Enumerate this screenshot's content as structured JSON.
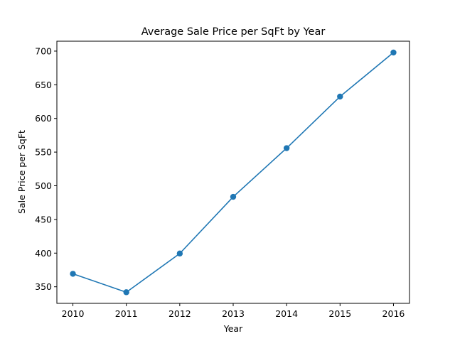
{
  "chart_data": {
    "type": "line",
    "title": "Average Sale Price per SqFt by Year",
    "xlabel": "Year",
    "ylabel": "Sale Price per SqFt",
    "x": [
      2010,
      2011,
      2012,
      2013,
      2014,
      2015,
      2016
    ],
    "x_ticks": [
      "2010",
      "2011",
      "2012",
      "2013",
      "2014",
      "2015",
      "2016"
    ],
    "y_ticks": [
      "350",
      "400",
      "450",
      "500",
      "550",
      "600",
      "650",
      "700"
    ],
    "xlim": [
      2009.7,
      2016.3
    ],
    "ylim": [
      325.4,
      714.7
    ],
    "grid": false,
    "marker": "circle",
    "series": [
      {
        "values": [
          369.3,
          341.9,
          399.4,
          483.6,
          555.9,
          632.5,
          697.9
        ],
        "color": "#1f77b4"
      }
    ]
  }
}
